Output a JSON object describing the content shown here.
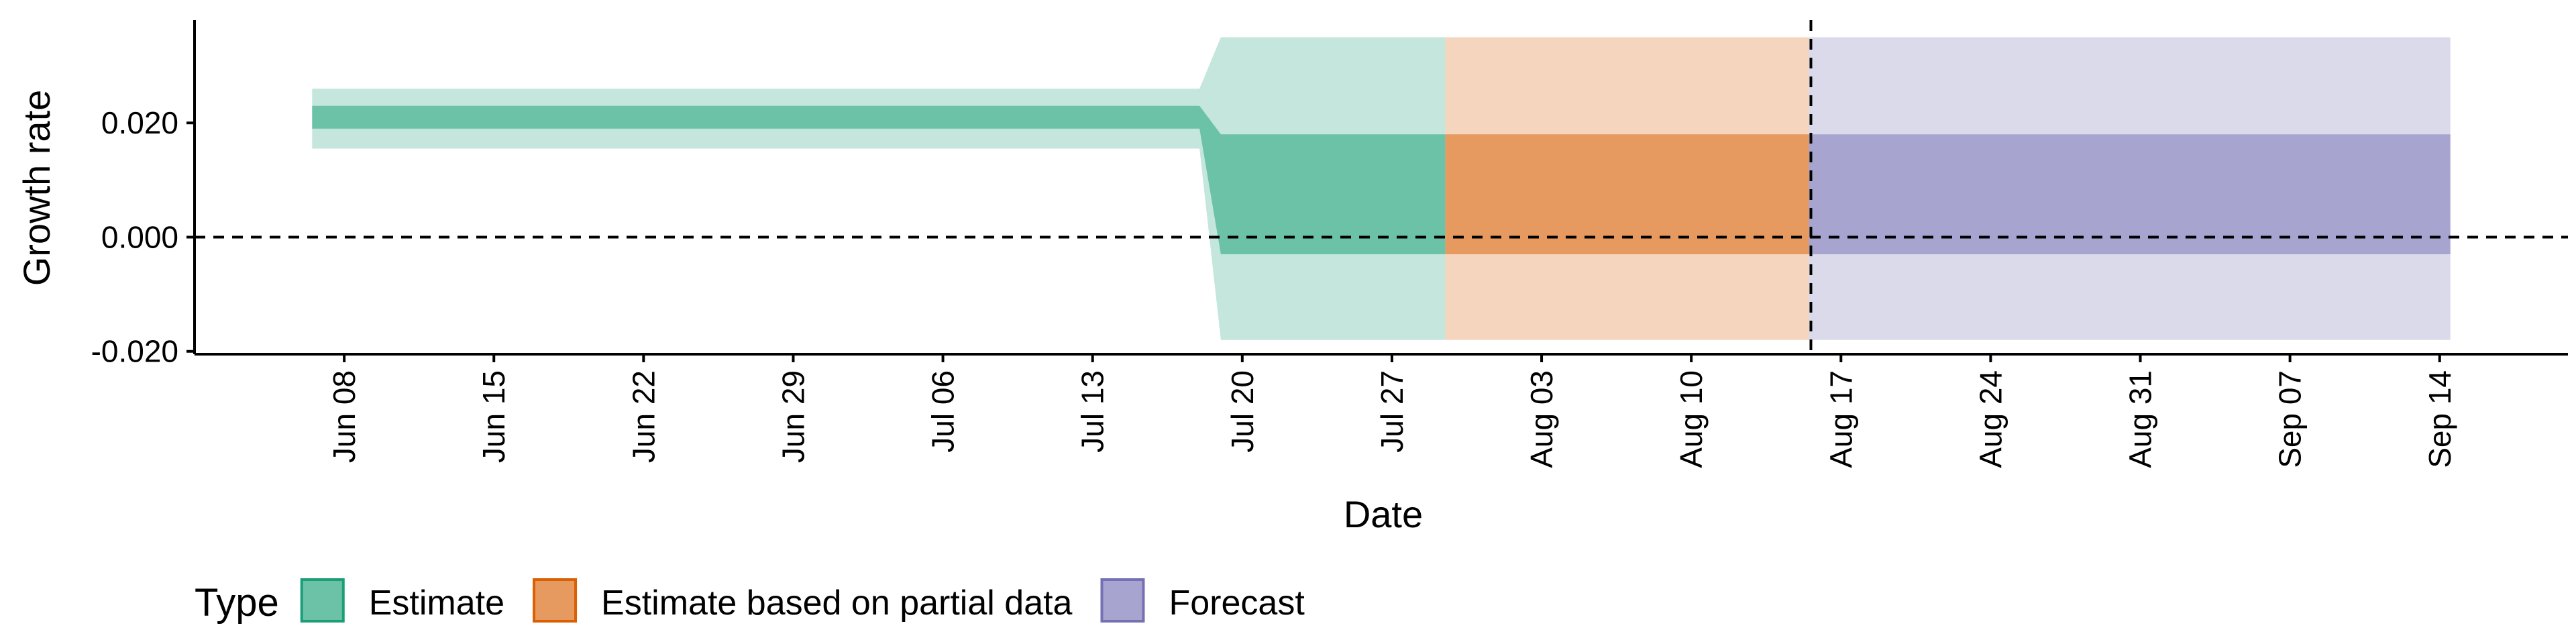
{
  "chart_data": {
    "type": "area",
    "x_type": "date",
    "xlabel": "Date",
    "ylabel": "Growth rate",
    "xlim": [
      "2020-06-01",
      "2020-09-20"
    ],
    "ylim": [
      -0.0205,
      0.038
    ],
    "x_ticks": [
      {
        "date": "2020-06-08",
        "label": "Jun 08"
      },
      {
        "date": "2020-06-15",
        "label": "Jun 15"
      },
      {
        "date": "2020-06-22",
        "label": "Jun 22"
      },
      {
        "date": "2020-06-29",
        "label": "Jun 29"
      },
      {
        "date": "2020-07-06",
        "label": "Jul 06"
      },
      {
        "date": "2020-07-13",
        "label": "Jul 13"
      },
      {
        "date": "2020-07-20",
        "label": "Jul 20"
      },
      {
        "date": "2020-07-27",
        "label": "Jul 27"
      },
      {
        "date": "2020-08-03",
        "label": "Aug 03"
      },
      {
        "date": "2020-08-10",
        "label": "Aug 10"
      },
      {
        "date": "2020-08-17",
        "label": "Aug 17"
      },
      {
        "date": "2020-08-24",
        "label": "Aug 24"
      },
      {
        "date": "2020-08-31",
        "label": "Aug 31"
      },
      {
        "date": "2020-09-07",
        "label": "Sep 07"
      },
      {
        "date": "2020-09-14",
        "label": "Sep 14"
      }
    ],
    "y_ticks": [
      {
        "value": 0.02,
        "label": "0.020"
      },
      {
        "value": 0.0,
        "label": "0.000"
      },
      {
        "value": -0.02,
        "label": "-0.020"
      }
    ],
    "reference_lines": {
      "horizontal_y": 0.0,
      "vertical_date": "2020-08-15"
    },
    "grid": false,
    "legend": {
      "title": "Type",
      "position": "bottom-left"
    },
    "series": [
      {
        "name": "Estimate",
        "fill_color": "#6cc2a7",
        "outer_color": "#c4e6dc",
        "border_color": "#1b9e77",
        "points": [
          {
            "date": "2020-06-07",
            "lower_outer": 0.0155,
            "lower_inner": 0.019,
            "upper_inner": 0.023,
            "upper_outer": 0.026
          },
          {
            "date": "2020-07-18",
            "lower_outer": 0.0155,
            "lower_inner": 0.019,
            "upper_inner": 0.023,
            "upper_outer": 0.026
          },
          {
            "date": "2020-07-19",
            "lower_outer": -0.018,
            "lower_inner": -0.003,
            "upper_inner": 0.018,
            "upper_outer": 0.035
          },
          {
            "date": "2020-07-29",
            "lower_outer": -0.018,
            "lower_inner": -0.003,
            "upper_inner": 0.018,
            "upper_outer": 0.035
          }
        ]
      },
      {
        "name": "Estimate based on partial data",
        "fill_color": "#e79a5f",
        "outer_color": "#f5d5bd",
        "border_color": "#d95f02",
        "points": [
          {
            "date": "2020-07-30",
            "lower_outer": -0.018,
            "lower_inner": -0.003,
            "upper_inner": 0.018,
            "upper_outer": 0.035
          },
          {
            "date": "2020-08-15",
            "lower_outer": -0.018,
            "lower_inner": -0.003,
            "upper_inner": 0.018,
            "upper_outer": 0.035
          }
        ]
      },
      {
        "name": "Forecast",
        "fill_color": "#a7a4cf",
        "outer_color": "#dbdaeb",
        "border_color": "#7570b3",
        "points": [
          {
            "date": "2020-08-16",
            "lower_outer": -0.018,
            "lower_inner": -0.003,
            "upper_inner": 0.018,
            "upper_outer": 0.035
          },
          {
            "date": "2020-09-14",
            "lower_outer": -0.018,
            "lower_inner": -0.003,
            "upper_inner": 0.018,
            "upper_outer": 0.035
          }
        ]
      }
    ]
  }
}
